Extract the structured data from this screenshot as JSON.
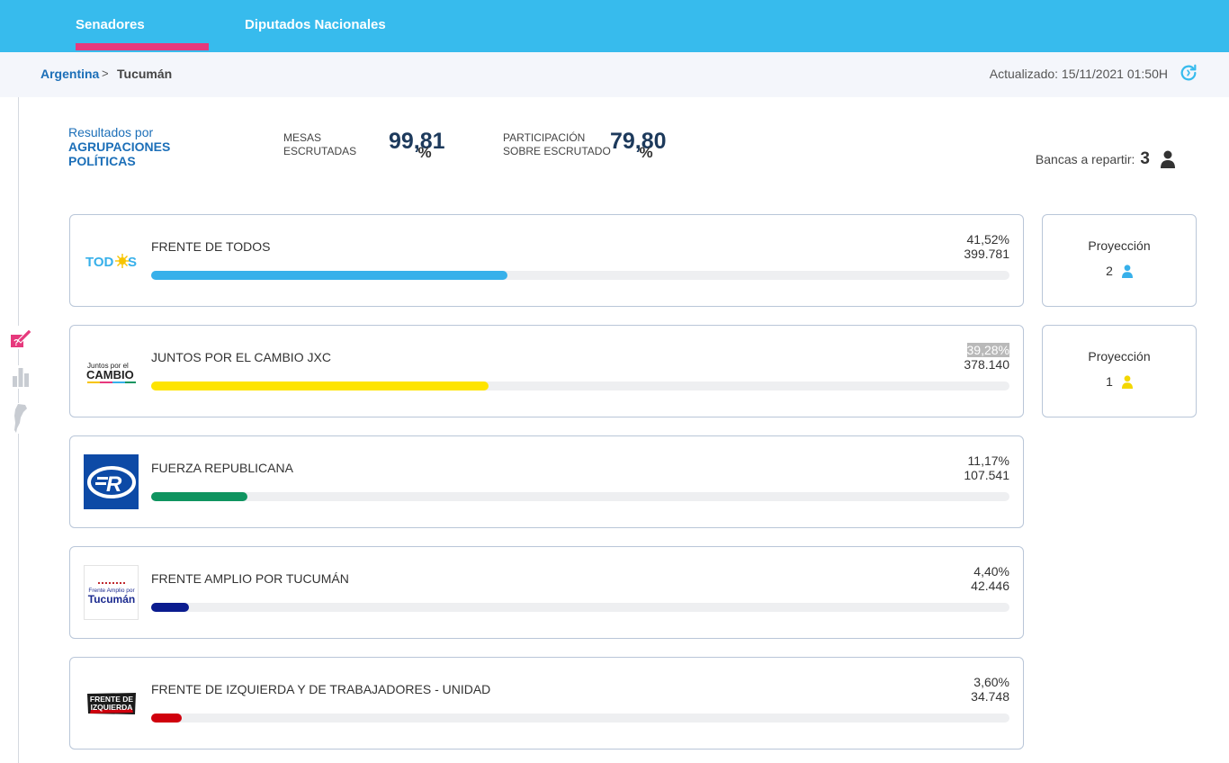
{
  "nav": {
    "tabs": [
      {
        "label": "Senadores Nacionales",
        "active": true
      },
      {
        "label": "Diputados Nacionales",
        "active": false
      }
    ]
  },
  "breadcrumb": {
    "root": "Argentina",
    "separator": ">",
    "current": "Tucumán"
  },
  "updated": "Actualizado: 15/11/2021 01:50H",
  "header": {
    "results_label_line1": "Resultados por",
    "results_label_line2": "AGRUPACIONES",
    "results_label_line3": "POLÍTICAS",
    "mesas_label_1": "MESAS",
    "mesas_label_2": "ESCRUTADAS",
    "mesas_value": "99,81",
    "participacion_label_1": "PARTICIPACIÓN",
    "participacion_label_2": "SOBRE ESCRUTADO",
    "participacion_value": "79,80",
    "percent_sign": "%",
    "bancas_label": "Bancas a repartir:",
    "bancas_value": "3"
  },
  "parties": [
    {
      "name": "FRENTE DE TODOS",
      "percent": "41,52%",
      "votes": "399.781",
      "share": 41.52,
      "color": "#37b0ea",
      "logo_text": "TODOS"
    },
    {
      "name": "JUNTOS POR EL CAMBIO JXC",
      "percent": "39,28%",
      "votes": "378.140",
      "share": 39.28,
      "color": "#fee400",
      "logo_text_1": "Juntos por el",
      "logo_text_2": "CAMBIO"
    },
    {
      "name": "FUERZA REPUBLICANA",
      "percent": "11,17%",
      "votes": "107.541",
      "share": 11.17,
      "color": "#0f9460",
      "logo_text": "R"
    },
    {
      "name": "FRENTE AMPLIO POR TUCUMÁN",
      "percent": "4,40%",
      "votes": "42.446",
      "share": 4.4,
      "color": "#0b1c8f",
      "logo_text_1": "Frente Amplio por",
      "logo_text_2": "Tucumán"
    },
    {
      "name": "FRENTE DE IZQUIERDA Y DE TRABAJADORES - UNIDAD",
      "percent": "3,60%",
      "votes": "34.748",
      "share": 3.6,
      "color": "#d0000d",
      "logo_text_1": "FRENTE DE",
      "logo_text_2": "IZQUIERDA"
    }
  ],
  "projections": [
    {
      "label": "Proyección",
      "value": "2",
      "color": "#37b0ea"
    },
    {
      "label": "Proyección",
      "value": "1",
      "color": "#fee400"
    }
  ],
  "icons": {
    "refresh": "refresh-icon",
    "person": "person-icon",
    "ballot": "ballot-icon",
    "chart": "bar-chart-icon",
    "map": "argentina-map-icon"
  },
  "colors": {
    "brand": "#37bbed",
    "accent": "#e6397c",
    "title": "#1d3a5c",
    "link": "#1c6fb8"
  }
}
